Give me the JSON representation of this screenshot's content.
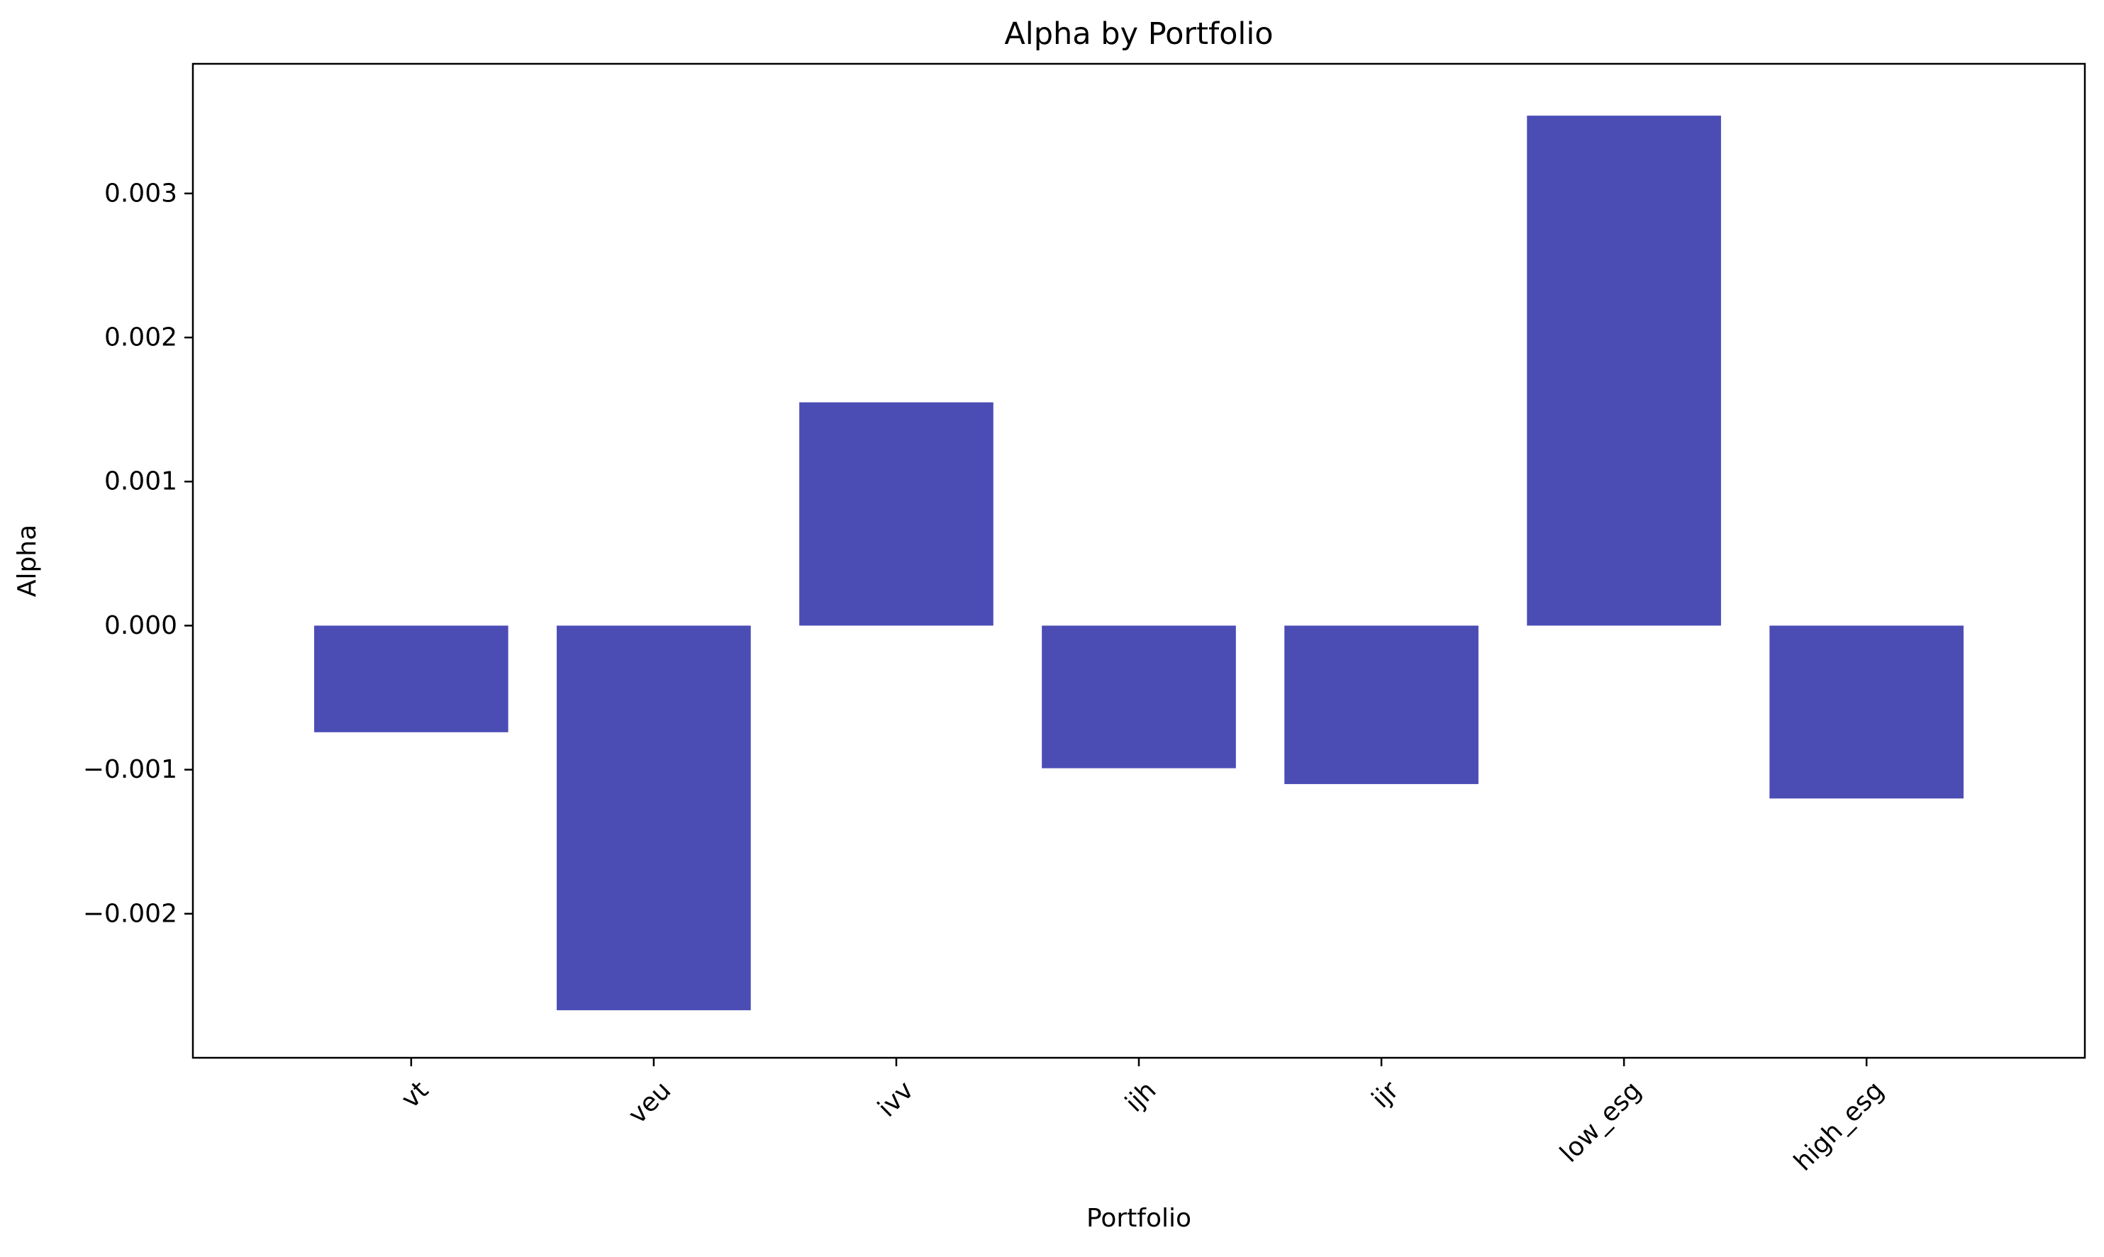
{
  "chart_data": {
    "type": "bar",
    "title": "Alpha by Portfolio",
    "xlabel": "Portfolio",
    "ylabel": "Alpha",
    "categories": [
      "vt",
      "veu",
      "ivv",
      "ijh",
      "ijr",
      "low_esg",
      "high_esg"
    ],
    "values": [
      -0.00074,
      -0.00267,
      0.00155,
      -0.00099,
      -0.0011,
      0.00354,
      -0.0012
    ],
    "ylim": [
      -0.003,
      0.0039
    ],
    "yticks": [
      -0.002,
      -0.001,
      0.0,
      0.001,
      0.002,
      0.003
    ],
    "ytick_labels": [
      "−0.002",
      "−0.001",
      "0.000",
      "0.001",
      "0.002",
      "0.003"
    ],
    "xtick_rotation_deg": 45,
    "bar_color": "#4b4db5",
    "grid": false,
    "legend": "none"
  }
}
